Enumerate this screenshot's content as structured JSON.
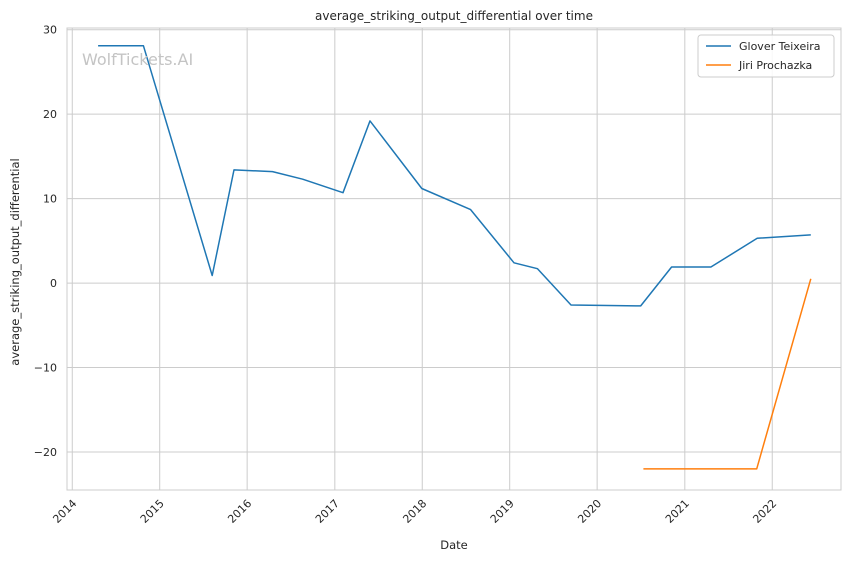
{
  "chart_data": {
    "type": "line",
    "title": "average_striking_output_differential over time",
    "xlabel": "Date",
    "ylabel": "average_striking_output_differential",
    "watermark": "WolfTickets.AI",
    "x_ticks": [
      "2014-01-01",
      "2015-01-01",
      "2016-01-01",
      "2017-01-01",
      "2018-01-01",
      "2019-01-01",
      "2020-01-01",
      "2021-01-01",
      "2022-01-01"
    ],
    "x_tick_labels": [
      "2014",
      "2015",
      "2016",
      "2017",
      "2018",
      "2019",
      "2020",
      "2021",
      "2022"
    ],
    "xlim": [
      "2013-12-10",
      "2022-10-15"
    ],
    "y_ticks": [
      30,
      20,
      10,
      0,
      -10,
      -20
    ],
    "y_tick_labels": [
      "30",
      "20",
      "10",
      "0",
      "−10",
      "−20"
    ],
    "ylim": [
      -24.5,
      30.2
    ],
    "grid": true,
    "legend_position": "top-right",
    "series": [
      {
        "name": "Glover Teixeira",
        "color": "#1f77b4",
        "points": [
          [
            "2014-04-19",
            28.1
          ],
          [
            "2014-10-25",
            28.1
          ],
          [
            "2015-08-08",
            0.9
          ],
          [
            "2015-11-07",
            13.4
          ],
          [
            "2016-04-16",
            13.2
          ],
          [
            "2016-08-20",
            12.3
          ],
          [
            "2017-02-04",
            10.7
          ],
          [
            "2017-05-28",
            19.2
          ],
          [
            "2017-12-30",
            11.2
          ],
          [
            "2018-07-22",
            8.7
          ],
          [
            "2019-01-19",
            2.4
          ],
          [
            "2019-04-27",
            1.7
          ],
          [
            "2019-09-14",
            -2.6
          ],
          [
            "2020-07-01",
            -2.7
          ],
          [
            "2020-11-07",
            1.9
          ],
          [
            "2021-04-20",
            1.9
          ],
          [
            "2021-10-30",
            5.3
          ],
          [
            "2022-06-11",
            5.7
          ]
        ]
      },
      {
        "name": "Jiri Prochazka",
        "color": "#ff7f0e",
        "points": [
          [
            "2020-07-12",
            -22.0
          ],
          [
            "2021-10-28",
            -22.0
          ],
          [
            "2022-06-11",
            0.5
          ]
        ]
      }
    ]
  }
}
